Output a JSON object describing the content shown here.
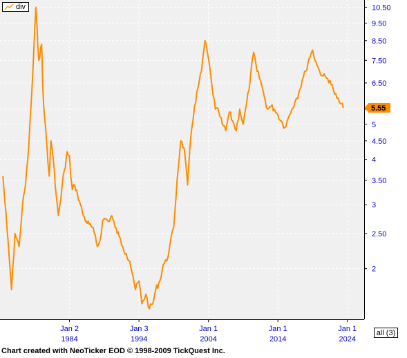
{
  "colors": {
    "background": "#f0f0f0",
    "line": "#ff8c00",
    "axis_text_x": "#0000cc",
    "axis_text_y": "#0000cc",
    "grid": "#ffffff",
    "marker_bg": "#ff8c00"
  },
  "legend": {
    "label": "div",
    "icon": "line-series-icon"
  },
  "range_button": {
    "label": "all (3)"
  },
  "credit": "Chart created with NeoTicker EOD © 1998-2009 TickQuest Inc.",
  "chart_data": {
    "type": "line",
    "title": "",
    "xlabel": "",
    "ylabel": "",
    "y_scale": "log",
    "ylim": [
      1.45,
      11.0
    ],
    "xlim": [
      "1974-01-01",
      "2026-06-01"
    ],
    "x_ticks": [
      {
        "line1": "Jan 2",
        "line2": "1984",
        "date": "1984-01-02"
      },
      {
        "line1": "Jan 3",
        "line2": "1994",
        "date": "1994-01-03"
      },
      {
        "line1": "Jan 1",
        "line2": "2004",
        "date": "2004-01-01"
      },
      {
        "line1": "Jan 1",
        "line2": "2014",
        "date": "2014-01-01"
      },
      {
        "line1": "Jan 1",
        "line2": "2024",
        "date": "2024-01-01"
      }
    ],
    "y_ticks": [
      {
        "value": 10.5,
        "label": "10.50"
      },
      {
        "value": 9.5,
        "label": "9.50"
      },
      {
        "value": 8.5,
        "label": "8.50"
      },
      {
        "value": 7.5,
        "label": "7.50"
      },
      {
        "value": 6.5,
        "label": "6.50"
      },
      {
        "value": 5.5,
        "label": "5.50"
      },
      {
        "value": 5,
        "label": "5"
      },
      {
        "value": 4.5,
        "label": "4.50"
      },
      {
        "value": 4,
        "label": "4"
      },
      {
        "value": 3.5,
        "label": "3.50"
      },
      {
        "value": 3,
        "label": "3"
      },
      {
        "value": 2.5,
        "label": "2.50"
      },
      {
        "value": 2,
        "label": "2"
      }
    ],
    "last_value": {
      "value": 5.55,
      "label": "5.55"
    },
    "grid": true,
    "series": [
      {
        "x": [
          "1974-06-01",
          "1975-01-01",
          "1975-09-01",
          "1976-03-01",
          "1976-10-01",
          "1977-04-01",
          "1977-09-01",
          "1978-03-01",
          "1978-09-01",
          "1979-03-01",
          "1979-08-01",
          "1980-01-01",
          "1980-03-01",
          "1980-06-01",
          "1980-09-01",
          "1980-12-01",
          "1981-02-01",
          "1981-05-01",
          "1981-09-01",
          "1982-02-01",
          "1982-06-01",
          "1982-10-01",
          "1983-02-01",
          "1983-06-01",
          "1983-09-01",
          "1984-01-01",
          "1984-03-01",
          "1984-06-01",
          "1984-10-01",
          "1985-03-01",
          "1985-08-01",
          "1986-01-01",
          "1986-06-01",
          "1986-11-01",
          "1987-04-01",
          "1987-08-01",
          "1988-01-01",
          "1988-06-01",
          "1988-10-01",
          "1989-03-01",
          "1989-08-01",
          "1990-02-01",
          "1990-08-01",
          "1991-03-01",
          "1991-09-01",
          "1992-03-01",
          "1992-09-01",
          "1993-03-01",
          "1993-07-01",
          "1994-01-01",
          "1994-06-01",
          "1995-01-01",
          "1995-07-01",
          "1996-01-01",
          "1996-06-01",
          "1997-01-01",
          "1997-07-01",
          "1998-01-01",
          "1998-06-01",
          "1999-01-01",
          "1999-07-01",
          "2000-01-01",
          "2000-07-01",
          "2001-01-01",
          "2001-07-01",
          "2002-01-01",
          "2002-07-01",
          "2003-01-01",
          "2003-07-01",
          "2004-01-01",
          "2004-07-01",
          "2005-01-01",
          "2005-07-01",
          "2006-01-01",
          "2006-07-01",
          "2007-01-01",
          "2007-07-01",
          "2008-01-01",
          "2008-07-01",
          "2009-01-01",
          "2009-07-01",
          "2010-01-01",
          "2010-07-01",
          "2011-01-01",
          "2011-07-01",
          "2012-01-01",
          "2012-07-01",
          "2013-01-01",
          "2013-07-01",
          "2014-01-01",
          "2014-07-01",
          "2015-01-01",
          "2015-07-01",
          "2016-01-01",
          "2016-07-01",
          "2017-01-01",
          "2017-07-01",
          "2018-01-01",
          "2018-07-01",
          "2019-01-01",
          "2019-07-01",
          "2020-01-01",
          "2020-07-01",
          "2021-01-01",
          "2021-07-01",
          "2022-01-01",
          "2022-07-01",
          "2023-01-01",
          "2023-06-01"
        ],
        "y": [
          3.6,
          2.6,
          1.75,
          2.5,
          2.3,
          3.0,
          3.4,
          4.4,
          6.6,
          10.5,
          7.5,
          8.3,
          6.3,
          5.2,
          4.6,
          3.9,
          3.6,
          4.5,
          4.0,
          3.2,
          2.8,
          3.1,
          3.6,
          3.8,
          4.2,
          4.1,
          3.6,
          3.3,
          3.4,
          3.2,
          3.0,
          2.8,
          2.7,
          2.65,
          2.6,
          2.5,
          2.3,
          2.4,
          2.7,
          2.75,
          2.7,
          2.8,
          2.6,
          2.45,
          2.3,
          2.2,
          2.1,
          1.9,
          1.75,
          1.85,
          1.6,
          1.7,
          1.55,
          1.6,
          1.75,
          1.85,
          2.05,
          2.1,
          2.3,
          2.6,
          3.5,
          4.5,
          4.3,
          3.4,
          4.7,
          5.6,
          6.3,
          7.0,
          8.5,
          7.6,
          6.4,
          5.5,
          5.4,
          5.0,
          4.8,
          5.4,
          5.1,
          4.8,
          5.5,
          5.0,
          5.7,
          6.6,
          7.9,
          7.0,
          6.6,
          6.0,
          5.5,
          5.6,
          5.5,
          5.3,
          5.1,
          4.9,
          5.2,
          5.5,
          5.8,
          6.1,
          6.6,
          7.0,
          7.6,
          8.0,
          7.4,
          7.0,
          6.8,
          6.7,
          6.6,
          6.2,
          5.9,
          5.7,
          5.55
        ]
      }
    ]
  }
}
